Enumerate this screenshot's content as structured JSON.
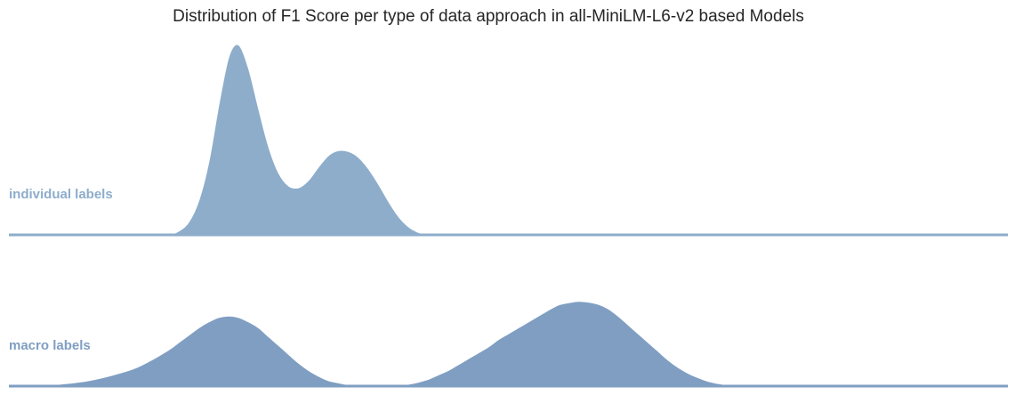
{
  "chart_data": {
    "type": "area",
    "subtype": "ridgeline-kde",
    "title": "Distribution of F1 Score per type of data approach in all-MiniLM-L6-v2 based Models",
    "xlabel": "",
    "ylabel": "",
    "xlim": [
      0,
      1
    ],
    "grid": false,
    "legend": "none",
    "x": [
      0.0,
      0.04,
      0.08,
      0.12,
      0.14,
      0.16,
      0.17,
      0.18,
      0.19,
      0.2,
      0.21,
      0.22,
      0.23,
      0.24,
      0.25,
      0.26,
      0.27,
      0.28,
      0.29,
      0.3,
      0.31,
      0.32,
      0.33,
      0.34,
      0.35,
      0.36,
      0.37,
      0.38,
      0.39,
      0.4,
      0.41,
      0.42,
      0.43,
      0.44,
      0.45,
      0.46,
      0.47,
      0.48,
      0.49,
      0.5,
      0.51,
      0.52,
      0.53,
      0.54,
      0.55,
      0.56,
      0.57,
      0.58,
      0.59,
      0.6,
      0.61,
      0.62,
      0.63,
      0.64,
      0.65,
      0.66,
      0.67,
      0.68,
      0.69,
      0.7,
      0.71,
      0.72,
      0.73,
      0.74,
      0.75,
      0.76,
      0.77,
      0.78,
      0.79,
      0.8,
      0.81,
      0.82,
      0.83,
      0.84,
      0.85,
      0.86,
      0.87,
      0.88,
      0.9,
      0.92,
      0.94,
      0.96,
      1.0
    ],
    "series": [
      {
        "name": "individual labels",
        "color": "#8dadcb",
        "values": [
          0.0,
          0.0,
          0.0,
          0.0,
          0.0,
          0.004,
          0.022,
          0.07,
          0.185,
          0.39,
          0.69,
          0.94,
          1.0,
          0.88,
          0.67,
          0.47,
          0.33,
          0.26,
          0.25,
          0.29,
          0.36,
          0.42,
          0.445,
          0.44,
          0.41,
          0.35,
          0.27,
          0.18,
          0.1,
          0.045,
          0.015,
          0.004,
          0.0,
          0.0,
          0.0,
          0.0,
          0.0,
          0.0,
          0.0,
          0.0,
          0.0,
          0.0,
          0.0,
          0.0,
          0.0,
          0.0,
          0.0,
          0.0,
          0.0,
          0.0,
          0.0,
          0.0,
          0.0,
          0.0,
          0.0,
          0.0,
          0.0,
          0.0,
          0.0,
          0.0,
          0.0,
          0.0,
          0.0,
          0.0,
          0.0,
          0.0,
          0.0,
          0.0,
          0.0,
          0.0,
          0.0,
          0.0,
          0.0,
          0.0,
          0.0,
          0.0,
          0.0,
          0.0,
          0.0,
          0.0,
          0.0,
          0.0,
          0.0
        ]
      },
      {
        "name": "macro labels",
        "color": "#7f9ec2",
        "values": [
          0.0,
          0.01,
          0.04,
          0.11,
          0.17,
          0.25,
          0.3,
          0.35,
          0.4,
          0.44,
          0.47,
          0.48,
          0.47,
          0.44,
          0.4,
          0.34,
          0.28,
          0.22,
          0.16,
          0.11,
          0.07,
          0.04,
          0.025,
          0.012,
          0.006,
          0.004,
          0.004,
          0.004,
          0.008,
          0.016,
          0.03,
          0.05,
          0.08,
          0.11,
          0.15,
          0.19,
          0.23,
          0.27,
          0.32,
          0.36,
          0.4,
          0.44,
          0.48,
          0.52,
          0.555,
          0.57,
          0.58,
          0.575,
          0.56,
          0.53,
          0.48,
          0.42,
          0.36,
          0.3,
          0.24,
          0.18,
          0.13,
          0.09,
          0.06,
          0.035,
          0.02,
          0.01,
          0.004,
          0.001,
          0.0,
          0.0,
          0.0,
          0.0,
          0.0,
          0.0,
          0.0,
          0.0,
          0.0,
          0.0,
          0.0,
          0.0,
          0.0,
          0.0,
          0.0,
          0.0,
          0.0,
          0.0,
          0.0
        ]
      }
    ]
  }
}
